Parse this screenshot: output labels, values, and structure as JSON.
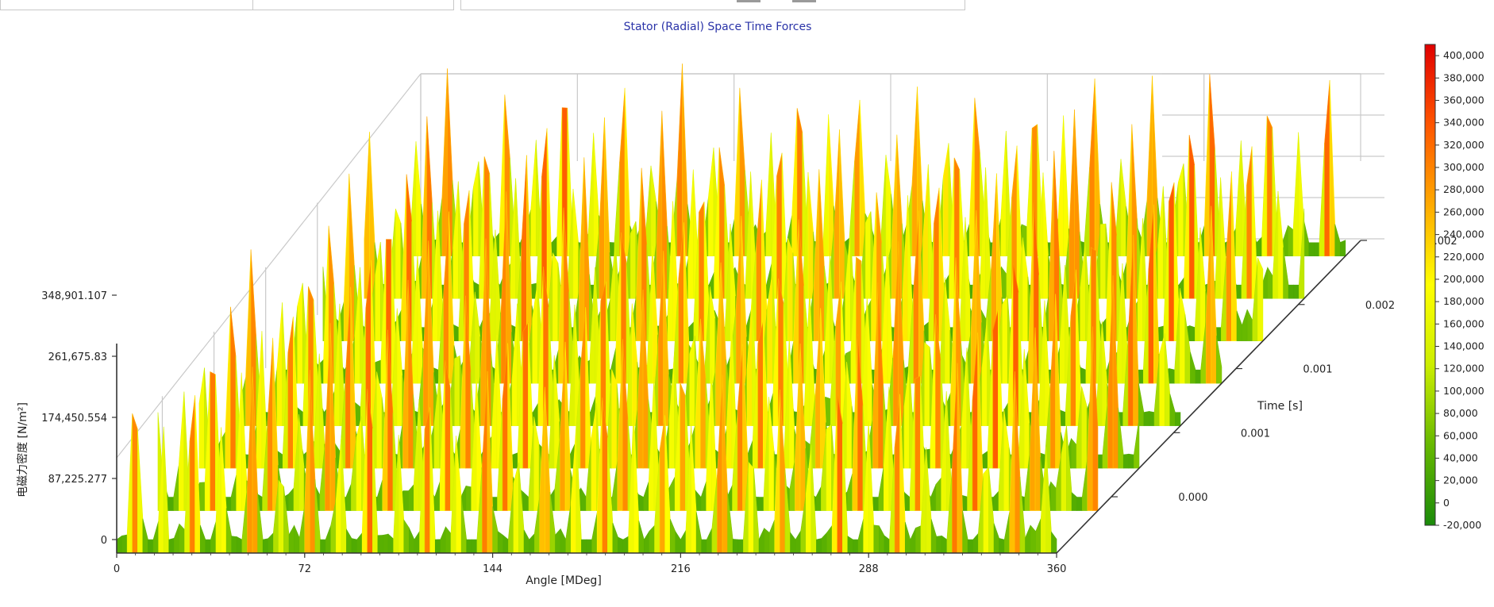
{
  "toolbar": {
    "tab_a_label": "",
    "tab_b_label": ""
  },
  "chart_data": {
    "type": "surface3d",
    "title": "Stator (Radial) Space Time Forces",
    "xlabel": "Angle [MDeg]",
    "ylabel": "Time [s]",
    "zlabel": "电磁力密度 [N/m²]",
    "x_ticks": [
      "0",
      "72",
      "144",
      "216",
      "288",
      "360"
    ],
    "x_range": [
      0,
      360
    ],
    "time_ticks": [
      "0.000",
      "0.001",
      "0.001",
      "0.002",
      "0.002"
    ],
    "time_range": [
      0,
      0.002
    ],
    "z_ticks": [
      "0",
      "87,225.277",
      "174,450.554",
      "261,675.83",
      "348,901.107"
    ],
    "z_range": [
      0,
      400000
    ],
    "colorbar": {
      "ticks": [
        "400,000",
        "380,000",
        "360,000",
        "340,000",
        "320,000",
        "300,000",
        "280,000",
        "260,000",
        "240,000",
        "220,000",
        "200,000",
        "180,000",
        "160,000",
        "140,000",
        "120,000",
        "100,000",
        "80,000",
        "60,000",
        "40,000",
        "20,000",
        "0",
        "-20,000"
      ],
      "min": -20000,
      "max": 410000,
      "colors": [
        "#1a8a0a",
        "#66b800",
        "#ccee00",
        "#ffff00",
        "#ffaa00",
        "#ff5500",
        "#e00000"
      ]
    },
    "surface": {
      "peaks_per_revolution": 16,
      "rows": 8,
      "base_value": 30000,
      "peak_value": 400000
    }
  }
}
